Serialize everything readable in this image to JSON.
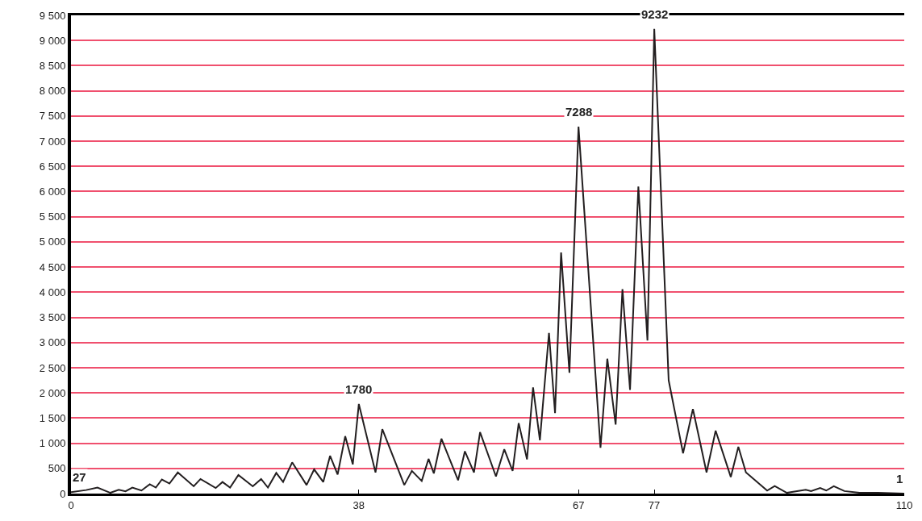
{
  "chart_data": {
    "type": "line",
    "x": [
      0,
      2,
      3.5,
      5.2,
      6.3,
      7.2,
      8.1,
      9.3,
      10.4,
      11.2,
      12,
      13,
      14.1,
      16.2,
      17.1,
      19.1,
      20,
      21,
      22.1,
      24,
      25.1,
      26,
      27.1,
      28,
      29.2,
      31.1,
      32.1,
      33.3,
      34.2,
      35.2,
      36.2,
      37.2,
      38,
      40.2,
      41.1,
      44,
      45,
      46.3,
      47.2,
      47.9,
      48.9,
      51.1,
      52,
      53.2,
      54,
      56.1,
      57.2,
      58.3,
      59.1,
      60.2,
      61,
      61.9,
      63.1,
      63.9,
      64.7,
      65.8,
      67,
      69.9,
      70.8,
      71.9,
      72.8,
      73.8,
      74.9,
      76.1,
      77,
      78.9,
      80.8,
      82.1,
      83.9,
      85.1,
      87.1,
      88.1,
      89.1,
      91.9,
      92.9,
      94.5,
      97,
      97.7,
      98.9,
      99.7,
      100.7,
      102.1,
      104.1,
      106.5,
      110
    ],
    "series": [
      {
        "color": "#231f20",
        "values": [
          27,
          70,
          120,
          15,
          75,
          45,
          120,
          60,
          185,
          120,
          280,
          200,
          420,
          145,
          290,
          110,
          230,
          120,
          370,
          145,
          290,
          120,
          410,
          230,
          620,
          170,
          480,
          230,
          750,
          380,
          1140,
          580,
          1780,
          420,
          1280,
          170,
          450,
          250,
          690,
          400,
          1090,
          265,
          840,
          420,
          1220,
          340,
          880,
          450,
          1400,
          680,
          2110,
          1060,
          3190,
          1600,
          4790,
          2400,
          7288,
          910,
          2680,
          1370,
          4060,
          2060,
          6100,
          3040,
          9232,
          2250,
          800,
          1680,
          420,
          1250,
          330,
          930,
          420,
          60,
          150,
          15,
          75,
          50,
          110,
          60,
          145,
          50,
          15,
          15,
          1
        ]
      }
    ],
    "xlim": [
      0,
      110
    ],
    "xticks": [
      0,
      38,
      67,
      77,
      110
    ],
    "ylim": [
      0,
      9500
    ],
    "yticks": [
      0,
      {
        "value": 500,
        "label": "500"
      },
      {
        "value": 1000,
        "label": "1 000"
      },
      {
        "value": 1500,
        "label": "1 500"
      },
      {
        "value": 2000,
        "label": "2 000"
      },
      {
        "value": 2500,
        "label": "2 500"
      },
      {
        "value": 3000,
        "label": "3 000"
      },
      {
        "value": 3500,
        "label": "3 500"
      },
      {
        "value": 4000,
        "label": "4 000"
      },
      {
        "value": 4500,
        "label": "4 500"
      },
      {
        "value": 5000,
        "label": "5 000"
      },
      {
        "value": 5500,
        "label": "5 500"
      },
      {
        "value": 6000,
        "label": "6 000"
      },
      {
        "value": 6500,
        "label": "6 500"
      },
      {
        "value": 7000,
        "label": "7 000"
      },
      {
        "value": 7500,
        "label": "7 500"
      },
      {
        "value": 8000,
        "label": "8 000"
      },
      {
        "value": 8500,
        "label": "8 500"
      },
      {
        "value": 9000,
        "label": "9 000"
      },
      {
        "value": 9500,
        "label": "9 500"
      }
    ],
    "grid": "y",
    "marker": "none",
    "line_style": "solid",
    "annotations": [
      {
        "text": "27",
        "x": 0,
        "y": 27
      },
      {
        "text": "1780",
        "x": 38,
        "y": 1780
      },
      {
        "text": "7288",
        "x": 67,
        "y": 7288
      },
      {
        "text": "9232",
        "x": 77,
        "y": 9232
      },
      {
        "text": "1",
        "x": 110,
        "y": 1
      }
    ]
  }
}
